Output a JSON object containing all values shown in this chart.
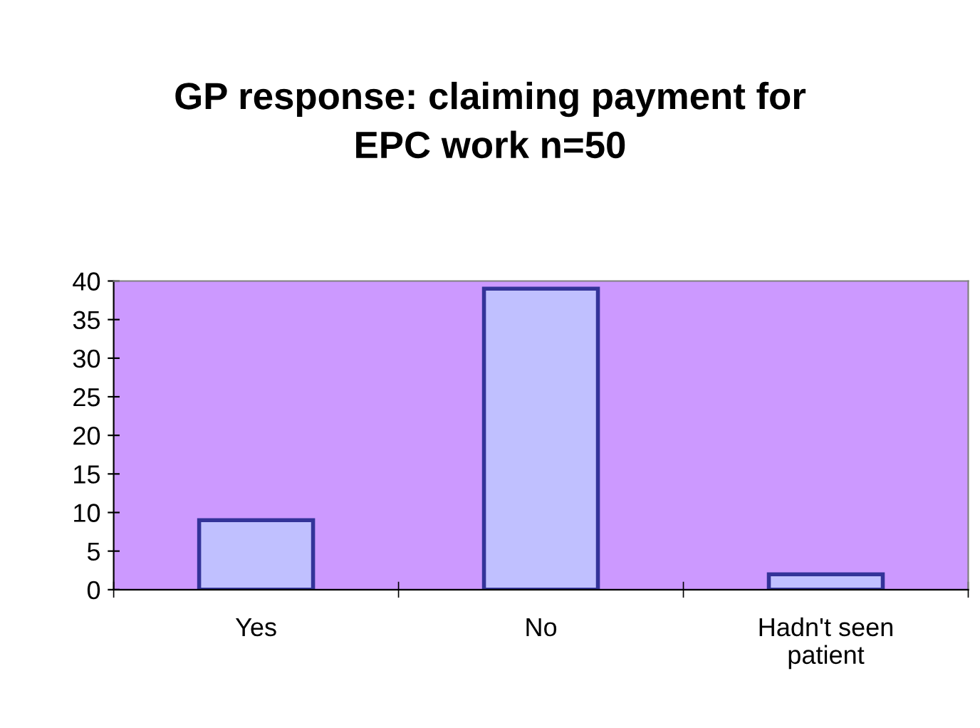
{
  "chart_data": {
    "type": "bar",
    "title": "GP response: claiming payment for\nEPC work n=50",
    "categories": [
      "Yes",
      "No",
      "Hadn't seen\npatient"
    ],
    "values": [
      9,
      39,
      2
    ],
    "color": "#c0c0ff",
    "ylim": [
      0,
      40
    ],
    "yticks": [
      0,
      5,
      10,
      15,
      20,
      25,
      30,
      35,
      40
    ],
    "grid": false,
    "legend": false
  }
}
